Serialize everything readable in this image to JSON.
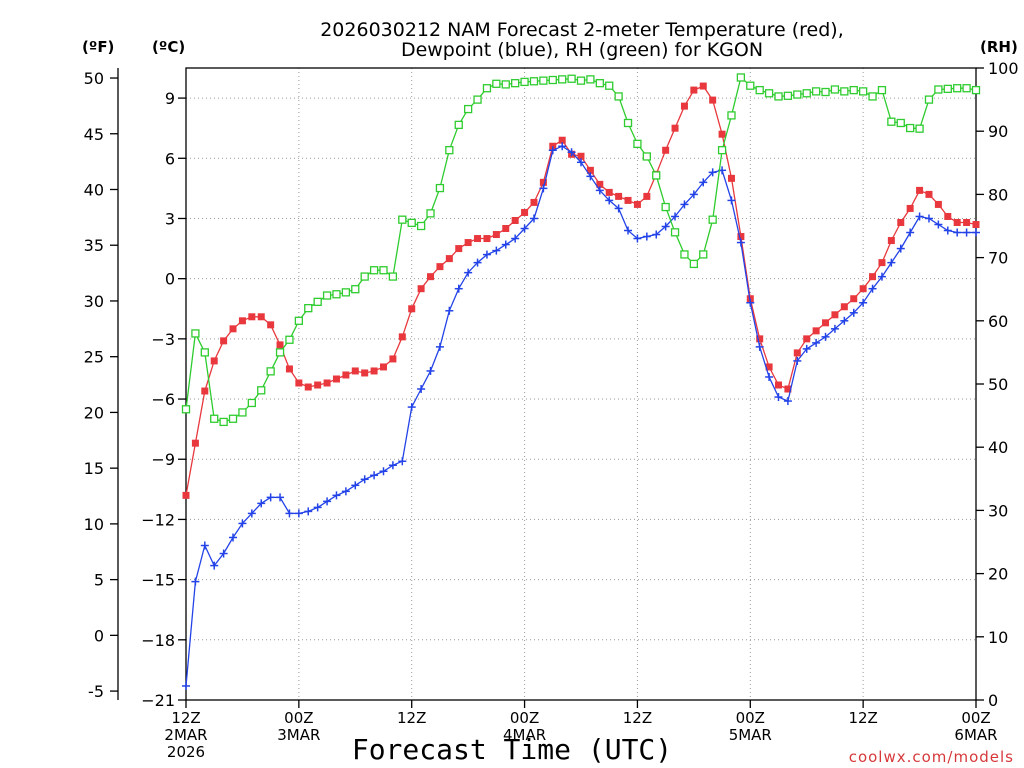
{
  "chart_data": {
    "type": "line",
    "title_line1": "2026030212 NAM Forecast 2-meter Temperature (red),",
    "title_line2": "Dewpoint (blue), RH (green) for KGON",
    "left_unit_f": "(ºF)",
    "left_unit_c": "(ºC)",
    "right_unit": "(RH)",
    "xlabel": "Forecast Time (UTC)",
    "watermark": "coolwx.com/models",
    "x_range_hours": [
      0,
      84
    ],
    "x_ticks": [
      {
        "hour": 0,
        "lines": [
          "12Z",
          "2MAR",
          "2026"
        ]
      },
      {
        "hour": 12,
        "lines": [
          "00Z",
          "3MAR"
        ]
      },
      {
        "hour": 24,
        "lines": [
          "12Z"
        ]
      },
      {
        "hour": 36,
        "lines": [
          "00Z",
          "4MAR"
        ]
      },
      {
        "hour": 48,
        "lines": [
          "12Z"
        ]
      },
      {
        "hour": 60,
        "lines": [
          "00Z",
          "5MAR"
        ]
      },
      {
        "hour": 72,
        "lines": [
          "12Z"
        ]
      },
      {
        "hour": 84,
        "lines": [
          "00Z",
          "6MAR"
        ]
      }
    ],
    "celsius_axis": {
      "ylim": [
        -21,
        10.5
      ],
      "ticks": [
        -21,
        -18,
        -15,
        -12,
        -9,
        -6,
        -3,
        0,
        3,
        6,
        9
      ]
    },
    "fahrenheit_ticks": [
      -5,
      0,
      5,
      10,
      15,
      20,
      25,
      30,
      35,
      40,
      45,
      50
    ],
    "rh_axis": {
      "ylim": [
        0,
        100
      ],
      "ticks": [
        0,
        10,
        20,
        30,
        40,
        50,
        60,
        70,
        80,
        90,
        100
      ]
    },
    "series": [
      {
        "name": "Temperature",
        "unit": "C",
        "color": "#e8383d",
        "x": [
          0,
          1,
          2,
          3,
          4,
          5,
          6,
          7,
          8,
          9,
          10,
          11,
          12,
          13,
          14,
          15,
          16,
          17,
          18,
          19,
          20,
          21,
          22,
          23,
          24,
          25,
          26,
          27,
          28,
          29,
          30,
          31,
          32,
          33,
          34,
          35,
          36,
          37,
          38,
          39,
          40,
          41,
          42,
          43,
          44,
          45,
          46,
          47,
          48,
          49,
          50,
          51,
          52,
          53,
          54,
          55,
          56,
          57,
          58,
          59,
          60,
          61,
          62,
          63,
          64,
          65,
          66,
          67,
          68,
          69,
          70,
          71,
          72,
          73,
          74,
          75,
          76,
          77,
          78,
          79,
          80,
          81,
          82,
          83,
          84
        ],
        "values": [
          -10.8,
          -8.2,
          -5.6,
          -4.1,
          -3.1,
          -2.5,
          -2.1,
          -1.9,
          -1.9,
          -2.3,
          -3.3,
          -4.5,
          -5.2,
          -5.4,
          -5.3,
          -5.2,
          -5.0,
          -4.8,
          -4.6,
          -4.7,
          -4.6,
          -4.4,
          -4.0,
          -2.9,
          -1.5,
          -0.5,
          0.1,
          0.6,
          1.0,
          1.5,
          1.8,
          2.0,
          2.0,
          2.2,
          2.5,
          2.9,
          3.3,
          3.8,
          4.8,
          6.6,
          6.9,
          6.2,
          6.1,
          5.4,
          4.7,
          4.3,
          4.1,
          3.9,
          3.7,
          4.1,
          5.2,
          6.4,
          7.5,
          8.6,
          9.4,
          9.6,
          8.9,
          7.2,
          5.0,
          2.1,
          -1.0,
          -3.0,
          -4.4,
          -5.3,
          -5.5,
          -3.7,
          -3.0,
          -2.6,
          -2.2,
          -1.8,
          -1.4,
          -1.0,
          -0.5,
          0.1,
          0.8,
          1.9,
          2.8,
          3.5,
          4.4,
          4.2,
          3.7,
          3.1,
          2.8,
          2.8,
          2.7
        ]
      },
      {
        "name": "Dewpoint",
        "unit": "C",
        "color": "#2343e8",
        "x": [
          0,
          1,
          2,
          3,
          4,
          5,
          6,
          7,
          8,
          9,
          10,
          11,
          12,
          13,
          14,
          15,
          16,
          17,
          18,
          19,
          20,
          21,
          22,
          23,
          24,
          25,
          26,
          27,
          28,
          29,
          30,
          31,
          32,
          33,
          34,
          35,
          36,
          37,
          38,
          39,
          40,
          41,
          42,
          43,
          44,
          45,
          46,
          47,
          48,
          49,
          50,
          51,
          52,
          53,
          54,
          55,
          56,
          57,
          58,
          59,
          60,
          61,
          62,
          63,
          64,
          65,
          66,
          67,
          68,
          69,
          70,
          71,
          72,
          73,
          74,
          75,
          76,
          77,
          78,
          79,
          80,
          81,
          82,
          83,
          84
        ],
        "values": [
          -20.3,
          -15.1,
          -13.3,
          -14.3,
          -13.7,
          -12.9,
          -12.2,
          -11.7,
          -11.2,
          -10.9,
          -10.9,
          -11.7,
          -11.7,
          -11.6,
          -11.4,
          -11.1,
          -10.8,
          -10.6,
          -10.3,
          -10.0,
          -9.8,
          -9.6,
          -9.3,
          -9.1,
          -6.4,
          -5.5,
          -4.6,
          -3.4,
          -1.6,
          -0.5,
          0.3,
          0.8,
          1.2,
          1.4,
          1.7,
          2.0,
          2.5,
          3.0,
          4.5,
          6.4,
          6.6,
          6.3,
          5.8,
          5.1,
          4.4,
          3.9,
          3.5,
          2.4,
          2.0,
          2.1,
          2.2,
          2.6,
          3.1,
          3.7,
          4.2,
          4.8,
          5.3,
          5.4,
          3.9,
          1.8,
          -1.2,
          -3.4,
          -4.9,
          -5.9,
          -6.1,
          -4.1,
          -3.5,
          -3.2,
          -2.9,
          -2.5,
          -2.1,
          -1.7,
          -1.2,
          -0.5,
          0.1,
          0.8,
          1.5,
          2.3,
          3.1,
          3.0,
          2.7,
          2.4,
          2.3,
          2.3,
          2.3
        ]
      },
      {
        "name": "Relative Humidity",
        "unit": "%",
        "color": "#2ecc2e",
        "x": [
          0,
          1,
          2,
          3,
          4,
          5,
          6,
          7,
          8,
          9,
          10,
          11,
          12,
          13,
          14,
          15,
          16,
          17,
          18,
          19,
          20,
          21,
          22,
          23,
          24,
          25,
          26,
          27,
          28,
          29,
          30,
          31,
          32,
          33,
          34,
          35,
          36,
          37,
          38,
          39,
          40,
          41,
          42,
          43,
          44,
          45,
          46,
          47,
          48,
          49,
          50,
          51,
          52,
          53,
          54,
          55,
          56,
          57,
          58,
          59,
          60,
          61,
          62,
          63,
          64,
          65,
          66,
          67,
          68,
          69,
          70,
          71,
          72,
          73,
          74,
          75,
          76,
          77,
          78,
          79,
          80,
          81,
          82,
          83,
          84
        ],
        "values": [
          46,
          58,
          55,
          44.5,
          44,
          44.5,
          45.5,
          47,
          49,
          52,
          55,
          57,
          60,
          62,
          63,
          64,
          64.2,
          64.5,
          65,
          67,
          68,
          68,
          67,
          76,
          75.5,
          75,
          77,
          81,
          87,
          91,
          93.5,
          95,
          96.8,
          97.5,
          97.4,
          97.6,
          97.8,
          97.9,
          98,
          98.1,
          98.2,
          98.3,
          98,
          98.2,
          97.6,
          97.2,
          95.5,
          91.3,
          88,
          86,
          83,
          78,
          74,
          70.5,
          69,
          70.5,
          76,
          87,
          92.5,
          98.5,
          97.2,
          96.5,
          96,
          95.5,
          95.6,
          95.8,
          96,
          96.3,
          96.2,
          96.6,
          96.3,
          96.5,
          96.3,
          95.5,
          96.5,
          91.5,
          91.3,
          90.5,
          90.4,
          95,
          96.6,
          96.7,
          96.8,
          96.8,
          96.5
        ]
      }
    ]
  }
}
